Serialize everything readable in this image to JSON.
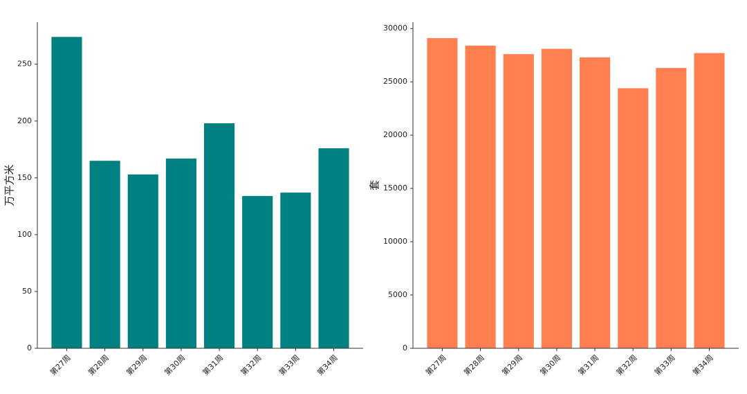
{
  "chart_data": [
    {
      "type": "bar",
      "ylabel": "万平方米",
      "categories": [
        "第27周",
        "第28周",
        "第29周",
        "第30周",
        "第31周",
        "第32周",
        "第33周",
        "第34周"
      ],
      "values": [
        274,
        165,
        153,
        167,
        198,
        134,
        137,
        176
      ],
      "color": "#008080",
      "ylim": [
        0,
        287
      ],
      "yticks": [
        0,
        50,
        100,
        150,
        200,
        250
      ]
    },
    {
      "type": "bar",
      "ylabel": "套",
      "categories": [
        "第27周",
        "第28周",
        "第29周",
        "第30周",
        "第31周",
        "第32周",
        "第33周",
        "第34周"
      ],
      "values": [
        29100,
        28400,
        27600,
        28100,
        27300,
        24400,
        26300,
        27700
      ],
      "color": "#ff7f50",
      "ylim": [
        0,
        30600
      ],
      "yticks": [
        0,
        5000,
        10000,
        15000,
        20000,
        25000,
        30000
      ]
    }
  ]
}
